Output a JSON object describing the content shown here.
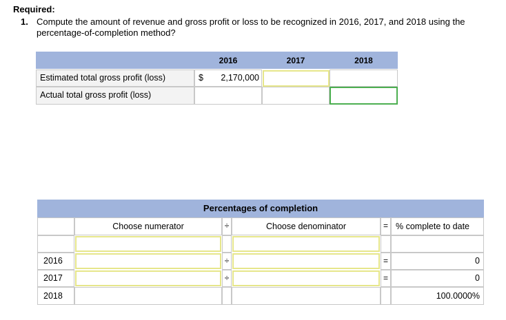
{
  "required_label": "Required:",
  "question": {
    "number": "1.",
    "text": "Compute the amount of revenue and gross profit or loss to be recognized in 2016, 2017, and 2018 using the percentage-of-completion method?"
  },
  "profit_table": {
    "headers": [
      "2016",
      "2017",
      "2018"
    ],
    "rows": [
      {
        "label": "Estimated total gross profit (loss)",
        "currency": "$",
        "value_2016": "2,170,000",
        "value_2017": "",
        "value_2018": ""
      },
      {
        "label": "Actual total gross profit (loss)",
        "value_2016": "",
        "value_2017": "",
        "value_2018": ""
      }
    ]
  },
  "completion_table": {
    "title": "Percentages of completion",
    "numerator_header": "Choose numerator",
    "divide_symbol": "÷",
    "denominator_header": "Choose denominator",
    "equals_symbol": "=",
    "result_header": "% complete to date",
    "rows": [
      {
        "year": "",
        "numerator": "",
        "denominator": "",
        "result": ""
      },
      {
        "year": "2016",
        "numerator": "",
        "denominator": "",
        "result": "0"
      },
      {
        "year": "2017",
        "numerator": "",
        "denominator": "",
        "result": "0"
      },
      {
        "year": "2018",
        "numerator": "",
        "denominator": "",
        "result": "100.0000%"
      }
    ]
  },
  "colors": {
    "header_bg": "#a0b4dc",
    "input_border": "#e6e68a",
    "active_border": "#4caf50"
  }
}
